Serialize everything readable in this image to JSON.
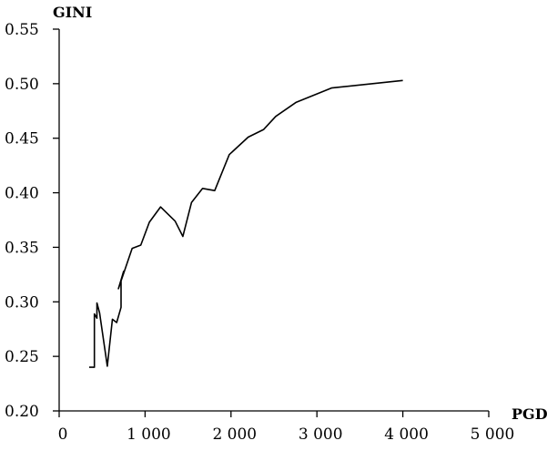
{
  "chart_data": {
    "type": "line",
    "xlabel": "PGDP",
    "ylabel": "GINI",
    "xlim": [
      0,
      5000
    ],
    "ylim": [
      0.2,
      0.55
    ],
    "x_ticks": [
      0,
      1000,
      2000,
      3000,
      4000,
      5000
    ],
    "x_tick_labels": [
      "0",
      "1 000",
      "2 000",
      "3 000",
      "4 000",
      "5 000"
    ],
    "y_ticks": [
      0.2,
      0.25,
      0.3,
      0.35,
      0.4,
      0.45,
      0.5,
      0.55
    ],
    "y_tick_labels": [
      "0.20",
      "0.25",
      "0.30",
      "0.35",
      "0.40",
      "0.45",
      "0.50",
      "0.55"
    ],
    "grid": false,
    "legend": false,
    "series": [
      {
        "x": [
          350,
          410,
          410,
          440,
          440,
          470,
          560,
          620,
          670,
          720,
          720,
          750,
          690,
          850,
          950,
          1050,
          1180,
          1350,
          1440,
          1540,
          1670,
          1810,
          1980,
          2200,
          2380,
          2520,
          2760,
          3170,
          4000
        ],
        "y": [
          0.24,
          0.24,
          0.289,
          0.285,
          0.299,
          0.29,
          0.241,
          0.284,
          0.281,
          0.295,
          0.32,
          0.328,
          0.312,
          0.349,
          0.352,
          0.373,
          0.387,
          0.374,
          0.36,
          0.391,
          0.404,
          0.402,
          0.435,
          0.451,
          0.458,
          0.47,
          0.483,
          0.496,
          0.503
        ]
      }
    ]
  }
}
